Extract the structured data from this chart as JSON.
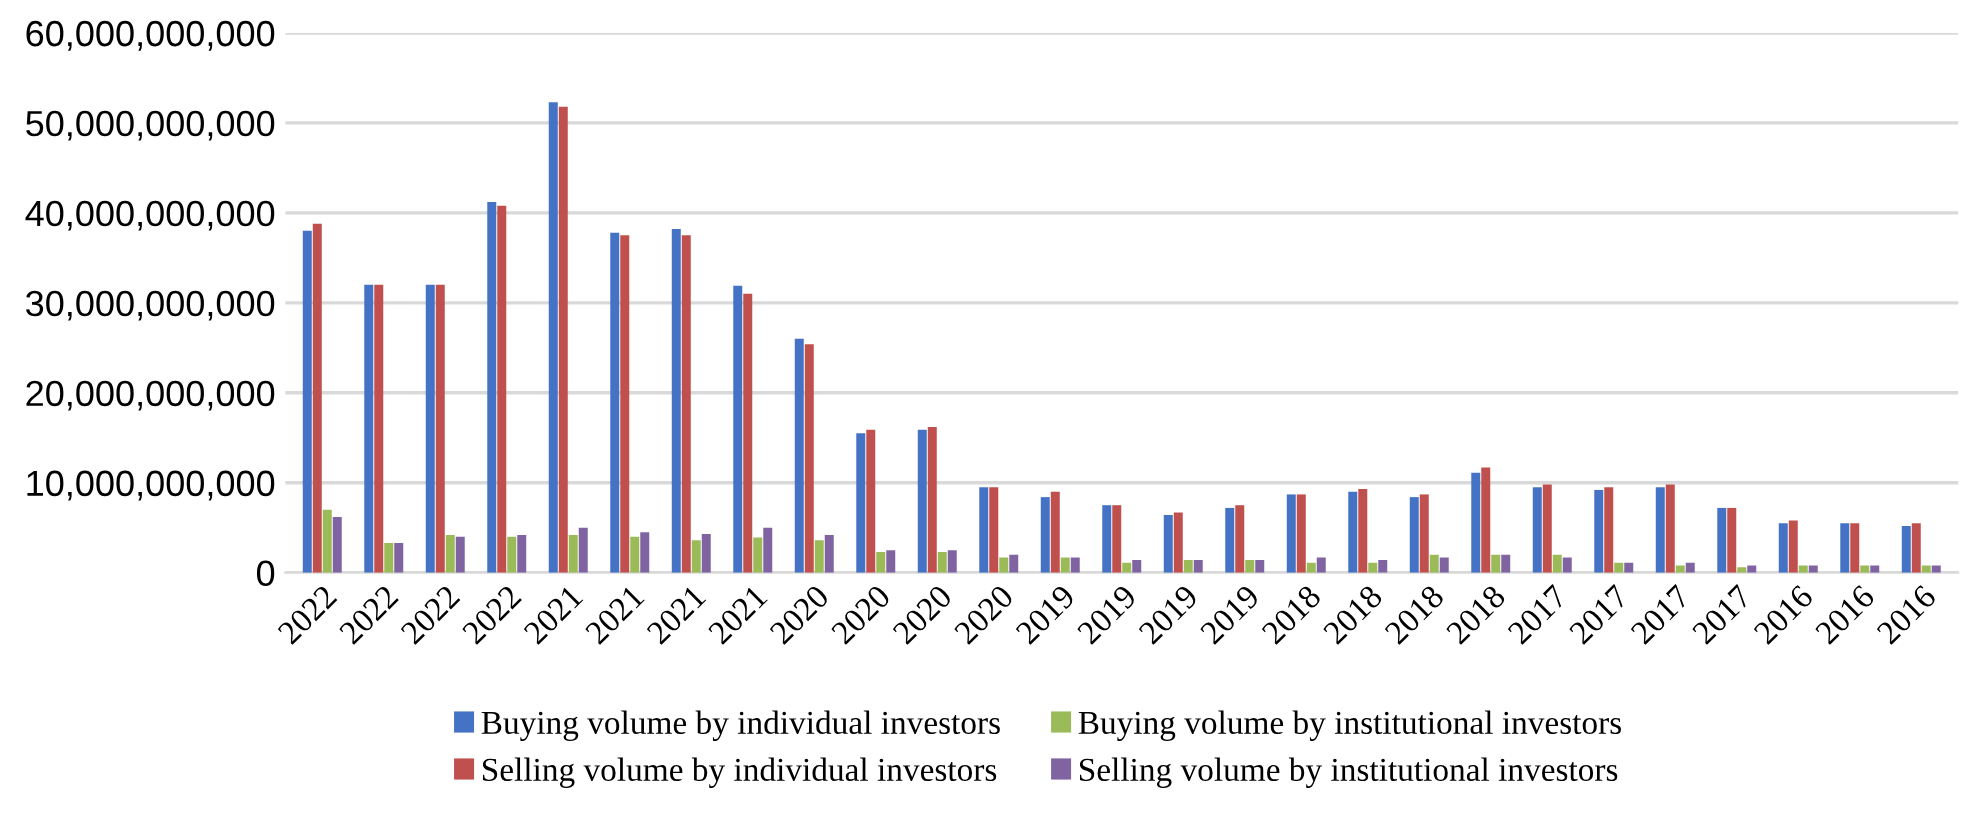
{
  "chart_data": {
    "type": "bar",
    "categories": [
      "2022",
      "2022",
      "2022",
      "2022",
      "2021",
      "2021",
      "2021",
      "2021",
      "2020",
      "2020",
      "2020",
      "2020",
      "2019",
      "2019",
      "2019",
      "2019",
      "2018",
      "2018",
      "2018",
      "2018",
      "2017",
      "2017",
      "2017",
      "2017",
      "2016",
      "2016",
      "2016"
    ],
    "series": [
      {
        "name": "Buying volume by individual investors",
        "color": "#4472c4",
        "values": [
          38000000000,
          32000000000,
          32000000000,
          41200000000,
          52300000000,
          37800000000,
          38200000000,
          31900000000,
          26000000000,
          15500000000,
          15900000000,
          9500000000,
          8400000000,
          7500000000,
          6400000000,
          7200000000,
          8700000000,
          9000000000,
          8400000000,
          11100000000,
          9500000000,
          9200000000,
          9500000000,
          7200000000,
          5500000000,
          5500000000,
          5200000000
        ]
      },
      {
        "name": "Selling volume by individual investors",
        "color": "#c0504d",
        "values": [
          38800000000,
          32000000000,
          32000000000,
          40800000000,
          51800000000,
          37500000000,
          37500000000,
          31000000000,
          25400000000,
          15900000000,
          16200000000,
          9500000000,
          9000000000,
          7500000000,
          6700000000,
          7500000000,
          8700000000,
          9300000000,
          8700000000,
          11700000000,
          9800000000,
          9500000000,
          9800000000,
          7200000000,
          5800000000,
          5500000000,
          5500000000
        ]
      },
      {
        "name": "Buying volume by institutional investors",
        "color": "#9bbb59",
        "values": [
          7000000000,
          3300000000,
          4200000000,
          4000000000,
          4200000000,
          4000000000,
          3600000000,
          3900000000,
          3600000000,
          2300000000,
          2300000000,
          1700000000,
          1700000000,
          1100000000,
          1400000000,
          1400000000,
          1100000000,
          1100000000,
          2000000000,
          2000000000,
          2000000000,
          1100000000,
          800000000,
          600000000,
          800000000,
          800000000,
          800000000
        ]
      },
      {
        "name": "Selling volume by institutional investors",
        "color": "#8064a2",
        "values": [
          6200000000,
          3300000000,
          4000000000,
          4200000000,
          5000000000,
          4500000000,
          4300000000,
          5000000000,
          4200000000,
          2500000000,
          2500000000,
          2000000000,
          1700000000,
          1400000000,
          1400000000,
          1400000000,
          1700000000,
          1400000000,
          1700000000,
          2000000000,
          1700000000,
          1100000000,
          1100000000,
          800000000,
          800000000,
          800000000,
          800000000
        ]
      }
    ],
    "ylim": [
      0,
      60000000000
    ],
    "yticks": [
      {
        "value": 0,
        "label": "0"
      },
      {
        "value": 10000000000,
        "label": "10,000,000,000"
      },
      {
        "value": 20000000000,
        "label": "20,000,000,000"
      },
      {
        "value": 30000000000,
        "label": "30,000,000,000"
      },
      {
        "value": 40000000000,
        "label": "40,000,000,000"
      },
      {
        "value": 50000000000,
        "label": "50,000,000,000"
      },
      {
        "value": 60000000000,
        "label": "60,000,000,000"
      }
    ],
    "grid": "y",
    "legend": "bottom"
  }
}
